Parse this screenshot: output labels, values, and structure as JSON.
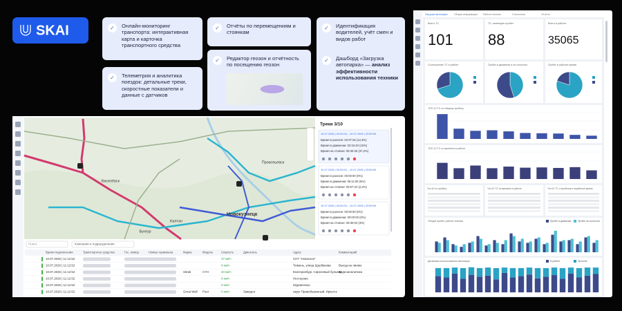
{
  "logo": "SKAI",
  "features": [
    {
      "text": "Онлайн-мониторинг транспорта: интерактивная карта и карточка транспортного средства"
    },
    {
      "text": "Отчёты по перемещениям и стоянкам"
    },
    {
      "text": "Идентификация водителей, учёт смен и видов работ"
    },
    {
      "text": "Телеметрия и аналитика поездок: детальные треки, скоростные показатели и данные с датчиков"
    },
    {
      "text": "Редактор геозон и отчётность по посещению геозон"
    },
    {
      "text": "Дашборд «Загрузка автопарка» —",
      "bold": "анализ эффективности использования техники"
    }
  ],
  "map": {
    "labels": [
      "Новокузнецк",
      "Прокопьевск",
      "Киселёвск",
      "Бунгур",
      "Калтан"
    ],
    "tracks_title": "Треки 3/10",
    "tracks": [
      {
        "date": "10.07.2026 | 00:00:00 – 10.07.2026 | 23:59:59",
        "lines": [
          "Время в разгоне: 02:07:26 (12,3%)",
          "Время в движении: 02:34:40 (15%)",
          "Время на стоянке: 06:36:26 (37,2%)"
        ]
      },
      {
        "date": "10.07.2026 | 00:00:00 – 10.07.2026 | 23:59:59",
        "lines": [
          "Время в разгоне: 00:00:00 (0%)",
          "Время в движении: 06:11:06 (5%)",
          "Время на стоянке: 05:57:22 (2,2%)"
        ]
      },
      {
        "date": "10.07.2026 | 00:00:00 – 10.07.2026 | 23:59:59",
        "lines": [
          "Время в разгоне: 00:00:00 (0%)",
          "Время в движении: 00:00:00 (0%)",
          "Время на стоянке: 08:36:04 (3%)"
        ]
      }
    ],
    "search": "Поиск",
    "filter": "Компании и подразделения",
    "table": {
      "headers": [
        "Время подключения",
        "Транспортное средство",
        "Гос. номер",
        "Номер терминала",
        "Марка",
        "Модель",
        "Скорость",
        "Двигатель",
        "Адрес",
        "Комментарий"
      ],
      "rows": [
        {
          "time": "10.07.2026 | 11:12:52",
          "speed": "37 км/ч",
          "address": "СНТ \"Новоское\""
        },
        {
          "time": "10.07.2026 | 11:12:52",
          "speed": "0 км/ч",
          "address": "Тюмень, улица Щербакова",
          "comment": "Выезд на линию"
        },
        {
          "time": "10.07.2026 | 11:12:52",
          "brand": "Sitrak",
          "model": "C7H",
          "speed": "40 км/ч",
          "address": "Екатеринбург, Сиреневый бульвар",
          "comment": "Видеоаналитика"
        },
        {
          "time": "10.07.2026 | 11:12:52",
          "speed": "0 км/ч",
          "address": "Нестерово"
        },
        {
          "time": "10.07.2026 | 11:12:52",
          "speed": "0 км/ч",
          "address": "Муравленко"
        },
        {
          "time": "10.07.2026 | 11:12:52",
          "brand": "Great Wall",
          "model": "Poer",
          "speed": "0 км/ч",
          "engine": "Заведен",
          "address": "округ Правобережный, Иркутск"
        }
      ]
    }
  },
  "dashboard": {
    "tabs": [
      "Загрузка автопарка",
      "Общая информация",
      "Работа техники",
      "Статистика",
      "Отчёты"
    ],
    "kpis": [
      {
        "title": "Всего ТС",
        "value": "101"
      },
      {
        "title": "ТС, имеющие пробег",
        "value": "88"
      },
      {
        "title": "Всего в работе",
        "value": "35065"
      }
    ],
    "pies": [
      {
        "title": "Соотношение ТС в работе",
        "values": [
          70,
          30
        ]
      },
      {
        "title": "Пробег в движении и на холостом",
        "values": [
          45,
          55
        ]
      },
      {
        "title": "Пробег в рабочее время",
        "values": [
          80,
          20
        ]
      }
    ],
    "pie_colors": [
      "#2ba3c4",
      "#3d4a8a"
    ],
    "bars": [
      {
        "title": "ТОП-10 ТС по общему пробегу",
        "color": "#3d54a8",
        "ylim": [
          0,
          100
        ],
        "values": [
          92,
          38,
          30,
          32,
          28,
          22,
          21,
          20,
          15,
          12
        ]
      },
      {
        "title": "ТОП-10 ТС по времени в работе",
        "color": "#3b3f7a",
        "ylim": [
          0,
          100
        ],
        "values": [
          60,
          40,
          50,
          40,
          46,
          42,
          43,
          41,
          44,
          32
        ]
      }
    ],
    "tables": [
      "Топ-10 по пробегу",
      "Топ-10 ТС по времени в работе",
      "Топ-10 ТС с пробегом в нерабочее время"
    ],
    "columns": {
      "title": "Общий пробег, работа техники",
      "ylim": [
        0,
        100
      ],
      "series": [
        {
          "name": "Пробег в движении",
          "color": "#3d4a8a",
          "values": [
            40,
            55,
            30,
            20,
            35,
            60,
            25,
            45,
            30,
            70,
            40,
            35,
            50,
            30,
            65,
            40,
            45,
            30,
            55,
            35
          ]
        },
        {
          "name": "Пробег на холостом",
          "color": "#4fc1d6",
          "values": [
            35,
            45,
            25,
            30,
            40,
            50,
            30,
            35,
            45,
            60,
            50,
            40,
            55,
            35,
            80,
            45,
            50,
            40,
            60,
            45
          ]
        }
      ]
    },
    "stacked": {
      "title": "Динамика использования автопарка",
      "ylim": [
        0,
        100
      ],
      "series": [
        {
          "name": "В работе",
          "color": "#3d4a8a",
          "values": [
            60,
            55,
            70,
            50,
            65,
            58,
            62,
            48,
            72,
            55,
            60,
            66,
            52,
            58,
            64,
            50,
            70,
            56,
            62,
            68
          ]
        },
        {
          "name": "Простой",
          "color": "#2ba3c4",
          "values": [
            30,
            35,
            22,
            40,
            28,
            32,
            30,
            42,
            20,
            35,
            30,
            26,
            38,
            32,
            28,
            40,
            22,
            34,
            30,
            24
          ]
        }
      ]
    }
  }
}
